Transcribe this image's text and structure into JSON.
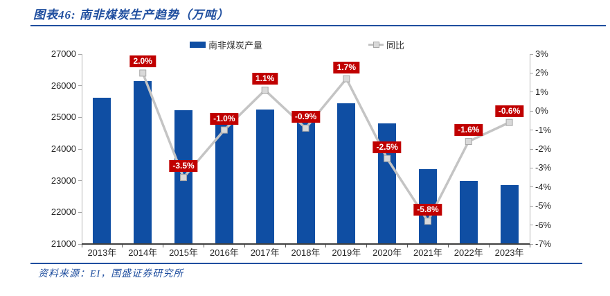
{
  "header": {
    "title": "图表46: 南非煤炭生产趋势（万吨）"
  },
  "legend": [
    {
      "label": "南非煤炭产量",
      "type": "bar"
    },
    {
      "label": "同比",
      "type": "line"
    }
  ],
  "footer": {
    "source": "资料来源：EI，国盛证券研究所"
  },
  "colors": {
    "accent_blue": "#1F4E9F",
    "bar": "#0F4EA3",
    "line": "#C4C4C4",
    "marker_fill": "#D9D9D9",
    "marker_stroke": "#A6A6A6",
    "data_label_bg": "#C00000",
    "data_label_text": "#FFFFFF",
    "axis_text": "#262626"
  },
  "chart_data": {
    "type": "bar",
    "title": "南非煤炭生产趋势（万吨）",
    "categories": [
      "2013年",
      "2014年",
      "2015年",
      "2016年",
      "2017年",
      "2018年",
      "2019年",
      "2020年",
      "2021年",
      "2022年",
      "2023年"
    ],
    "series": [
      {
        "name": "南非煤炭产量",
        "chart_type": "bar",
        "axis": "left",
        "values": [
          25630,
          26150,
          25230,
          24980,
          25240,
          25010,
          25440,
          24800,
          23370,
          23000,
          22860
        ]
      },
      {
        "name": "同比",
        "chart_type": "line",
        "axis": "right",
        "values": [
          null,
          2.0,
          -3.5,
          -1.0,
          1.1,
          -0.9,
          1.7,
          -2.5,
          -5.8,
          -1.6,
          -0.6
        ],
        "point_labels": [
          null,
          "2.0%",
          "-3.5%",
          "-1.0%",
          "1.1%",
          "-0.9%",
          "1.7%",
          "-2.5%",
          "-5.8%",
          "-1.6%",
          "-0.6%"
        ]
      }
    ],
    "left_axis": {
      "min": 21000,
      "max": 27000,
      "tick_labels": [
        "27000",
        "26000",
        "25000",
        "24000",
        "23000",
        "22000",
        "21000"
      ]
    },
    "right_axis": {
      "min": -7,
      "max": 3,
      "tick_labels": [
        "3%",
        "2%",
        "1%",
        "0%",
        "-1%",
        "-2%",
        "-3%",
        "-4%",
        "-5%",
        "-6%",
        "-7%"
      ]
    },
    "grid": false,
    "legend_position": "top"
  }
}
